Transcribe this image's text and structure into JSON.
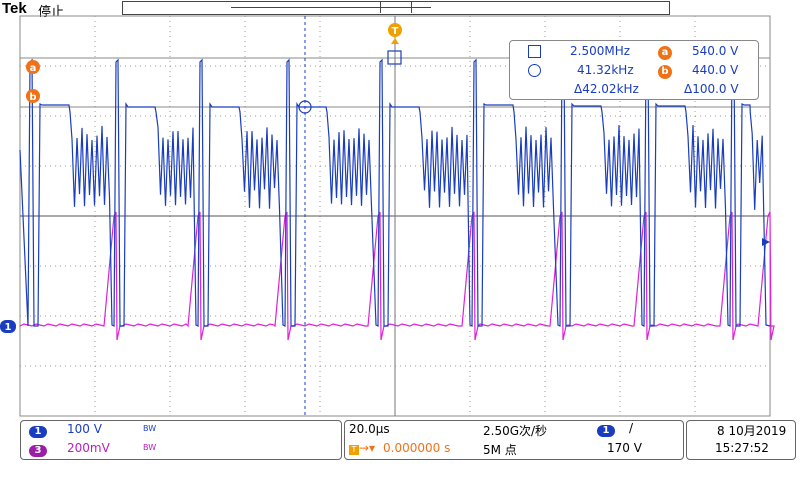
{
  "header": {
    "brand": "Tek",
    "run_status": "停止"
  },
  "trigger_marker": "T",
  "cursor_a_label": "a",
  "cursor_b_label": "b",
  "channel1_marker": "1",
  "readout": {
    "row1_freq": "2.500MHz",
    "row1_volt": "540.0 V",
    "row2_freq": "41.32kHz",
    "row2_volt": "440.0 V",
    "delta_freq": "Δ42.02kHz",
    "delta_volt": "Δ100.0 V"
  },
  "channels": {
    "ch1": {
      "label": "1",
      "scale": "100 V",
      "bw": "BW",
      "color": "#1a3dbf"
    },
    "ch3": {
      "label": "3",
      "scale": "200mV",
      "bw": "BW",
      "color": "#b61fbf"
    }
  },
  "timebase": {
    "scale": "20.0µs",
    "sample_rate": "2.50G次/秒",
    "trigger_delay": "0.000000 s",
    "record_length": "5M 点"
  },
  "trigger": {
    "source": "1",
    "slope": "/",
    "level": "170 V"
  },
  "datetime": {
    "date": "8 10月2019",
    "time": "15:27:52"
  },
  "colors": {
    "ch1": "#1a3dbf",
    "ch3": "#e11fd9",
    "cursor": "#f07218",
    "grid": "#9a9a9a"
  }
}
